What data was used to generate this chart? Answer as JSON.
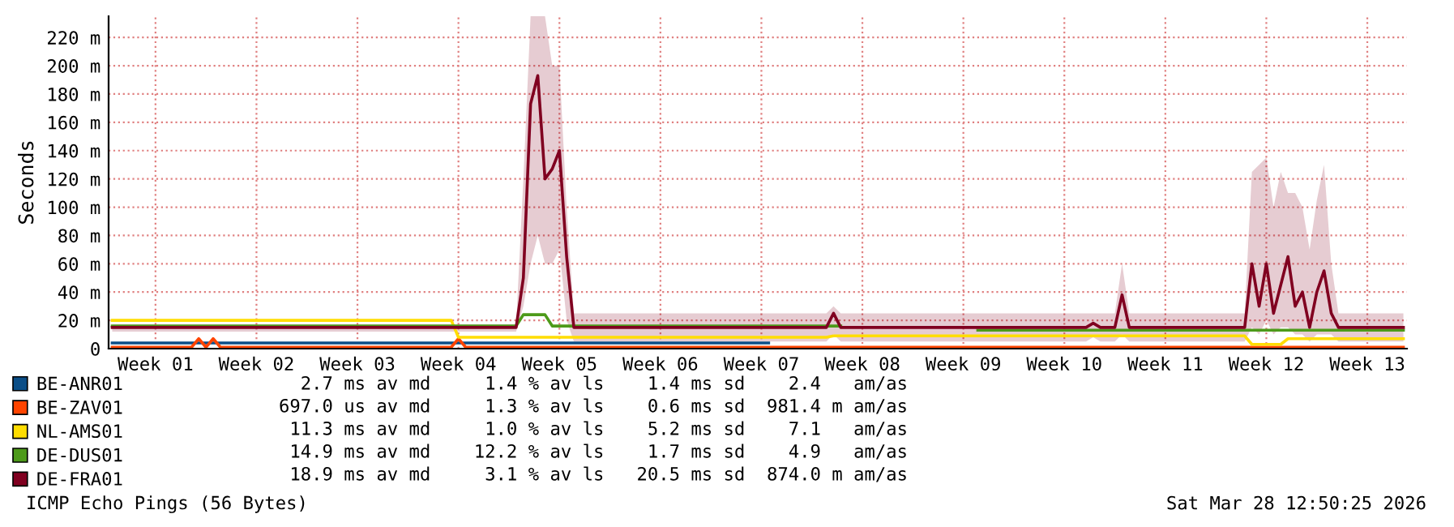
{
  "chart_data": {
    "type": "line",
    "ylabel": "Seconds",
    "categories": [
      null,
      null,
      null,
      null,
      null,
      null,
      "Week 01",
      null,
      null,
      null,
      null,
      null,
      null,
      null,
      null,
      null,
      null,
      null,
      null,
      null,
      "Week 02",
      null,
      null,
      null,
      null,
      null,
      null,
      null,
      null,
      null,
      null,
      null,
      null,
      null,
      "Week 03",
      null,
      null,
      null,
      null,
      null,
      null,
      null,
      null,
      null,
      null,
      null,
      null,
      null,
      "Week 04",
      null,
      null,
      null,
      null,
      null,
      null,
      null,
      null,
      null,
      null,
      null,
      null,
      null,
      "Week 05",
      null,
      null,
      null,
      null,
      null,
      null,
      null,
      null,
      null,
      null,
      null,
      null,
      null,
      "Week 06",
      null,
      null,
      null,
      null,
      null,
      null,
      null,
      null,
      null,
      null,
      null,
      null,
      null,
      "Week 07",
      null,
      null,
      null,
      null,
      null,
      null,
      null,
      null,
      null,
      null,
      null,
      null,
      null,
      "Week 08",
      null,
      null,
      null,
      null,
      null,
      null,
      null,
      null,
      null,
      null,
      null,
      null,
      null,
      "Week 09",
      null,
      null,
      null,
      null,
      null,
      null,
      null,
      null,
      null,
      null,
      null,
      null,
      null,
      "Week 10",
      null,
      null,
      null,
      null,
      null,
      null,
      null,
      null,
      null,
      null,
      null,
      null,
      null,
      "Week 11",
      null,
      null,
      null,
      null,
      null,
      null,
      null,
      null,
      null,
      null,
      null,
      null,
      null,
      "Week 12",
      null,
      null,
      null,
      null,
      null,
      null,
      null,
      null,
      null,
      null,
      null,
      null,
      null,
      "Week 13",
      null,
      null,
      null,
      null,
      null
    ],
    "ylim": [
      0,
      235
    ],
    "yticks": [
      0,
      {
        "value": 20,
        "label": "20 m"
      },
      {
        "value": 40,
        "label": "40 m"
      },
      {
        "value": 60,
        "label": "60 m"
      },
      {
        "value": 80,
        "label": "80 m"
      },
      {
        "value": 100,
        "label": "100 m"
      },
      {
        "value": 120,
        "label": "120 m"
      },
      {
        "value": 140,
        "label": "140 m"
      },
      {
        "value": 160,
        "label": "160 m"
      },
      {
        "value": 180,
        "label": "180 m"
      },
      {
        "value": 200,
        "label": "200 m"
      },
      {
        "value": 220,
        "label": "220 m"
      }
    ],
    "grid": true,
    "legend": "bottom",
    "series": [
      {
        "name": "BE-ANR01",
        "color": "#0b4e87",
        "values": [
          4,
          4,
          4,
          4,
          4,
          4,
          4,
          4,
          4,
          4,
          4,
          4,
          4,
          4,
          4,
          4,
          4,
          4,
          4,
          4,
          4,
          4,
          4,
          4,
          4,
          4,
          4,
          4,
          4,
          4,
          4,
          4,
          4,
          4,
          4,
          4,
          4,
          4,
          4,
          4,
          4,
          4,
          4,
          4,
          4,
          4,
          4,
          4,
          4,
          4,
          4,
          4,
          4,
          4,
          4,
          4,
          4,
          4,
          4,
          4,
          4,
          4,
          4,
          4,
          4,
          4,
          4,
          4,
          4,
          4,
          4,
          4,
          4,
          4,
          4,
          4,
          4,
          4,
          4,
          4,
          4,
          4,
          4,
          4,
          4,
          4,
          4,
          4,
          4,
          4,
          4,
          4,
          null,
          null,
          null,
          null,
          null,
          null,
          null,
          null,
          null,
          null,
          null,
          null,
          null,
          null,
          null,
          null,
          null,
          null,
          null,
          null,
          null,
          null,
          null,
          null,
          null,
          null,
          null,
          null,
          null,
          null,
          null,
          null,
          null,
          null,
          null,
          null,
          null,
          null,
          null,
          null,
          null,
          null,
          null,
          null,
          null,
          null,
          null,
          null,
          null,
          null,
          null,
          null,
          null,
          null,
          null,
          null,
          null,
          null,
          null,
          null,
          null,
          null,
          null,
          null,
          null,
          null,
          null,
          null,
          null,
          null,
          null,
          null,
          null,
          null,
          null,
          null,
          null,
          null,
          null,
          null,
          null,
          null,
          null,
          null,
          null,
          null,
          null,
          null
        ]
      },
      {
        "name": "BE-ZAV01",
        "color": "#ff4400",
        "values": [
          1,
          1,
          1,
          1,
          1,
          1,
          1,
          1,
          1,
          1,
          1,
          1,
          7,
          1,
          7,
          1,
          1,
          1,
          1,
          1,
          1,
          1,
          1,
          1,
          1,
          1,
          1,
          1,
          1,
          1,
          1,
          1,
          1,
          1,
          1,
          1,
          1,
          1,
          1,
          1,
          1,
          1,
          1,
          1,
          1,
          1,
          1,
          1,
          7,
          1,
          1,
          1,
          1,
          1,
          1,
          1,
          1,
          1,
          1,
          1,
          1,
          1,
          1,
          1,
          1,
          1,
          1,
          1,
          1,
          1,
          1,
          1,
          1,
          1,
          1,
          1,
          1,
          1,
          1,
          1,
          1,
          1,
          1,
          1,
          1,
          1,
          1,
          1,
          1,
          1,
          1,
          1,
          1,
          1,
          1,
          1,
          1,
          1,
          1,
          1,
          1,
          1,
          1,
          1,
          1,
          1,
          1,
          1,
          1,
          1,
          1,
          1,
          1,
          1,
          1,
          1,
          1,
          1,
          1,
          1,
          1,
          1,
          1,
          1,
          1,
          1,
          1,
          1,
          1,
          1,
          1,
          1,
          1,
          1,
          1,
          1,
          1,
          1,
          1,
          1,
          1,
          1,
          1,
          1,
          1,
          1,
          1,
          1,
          1,
          1,
          1,
          1,
          1,
          1,
          1,
          1,
          1,
          1,
          1,
          1,
          1,
          1,
          1,
          1,
          1,
          1,
          1,
          1,
          1,
          1,
          1,
          1,
          1,
          1,
          1,
          1,
          1,
          1,
          1,
          1
        ]
      },
      {
        "name": "NL-AMS01",
        "color": "#ffdd00",
        "values": [
          20,
          20,
          20,
          20,
          20,
          20,
          20,
          20,
          20,
          20,
          20,
          20,
          20,
          20,
          20,
          20,
          20,
          20,
          20,
          20,
          20,
          20,
          20,
          20,
          20,
          20,
          20,
          20,
          20,
          20,
          20,
          20,
          20,
          20,
          20,
          20,
          20,
          20,
          20,
          20,
          20,
          20,
          20,
          20,
          20,
          20,
          20,
          20,
          8,
          8,
          8,
          8,
          8,
          8,
          8,
          8,
          8,
          8,
          8,
          8,
          8,
          8,
          8,
          8,
          8,
          8,
          8,
          8,
          8,
          8,
          8,
          8,
          8,
          8,
          8,
          8,
          8,
          8,
          8,
          8,
          8,
          8,
          8,
          8,
          8,
          8,
          8,
          8,
          8,
          8,
          8,
          8,
          8,
          8,
          8,
          8,
          8,
          8,
          8,
          8,
          9,
          9,
          9,
          9,
          9,
          9,
          9,
          9,
          9,
          9,
          9,
          9,
          9,
          9,
          9,
          9,
          9,
          9,
          9,
          9,
          9,
          9,
          9,
          9,
          9,
          9,
          9,
          9,
          9,
          9,
          9,
          9,
          9,
          9,
          9,
          9,
          9,
          9,
          9,
          9,
          9,
          9,
          9,
          9,
          9,
          9,
          9,
          9,
          9,
          9,
          9,
          9,
          9,
          9,
          9,
          9,
          9,
          9,
          3,
          3,
          3,
          3,
          3,
          7,
          7,
          7,
          7,
          7,
          7,
          7,
          7,
          7,
          7,
          7,
          7,
          7,
          7,
          7,
          7,
          7
        ]
      },
      {
        "name": "DE-DUS01",
        "color": "#4d9a1a",
        "values": [
          16,
          16,
          16,
          16,
          16,
          16,
          16,
          16,
          16,
          16,
          16,
          16,
          16,
          16,
          16,
          16,
          16,
          16,
          16,
          16,
          16,
          16,
          16,
          16,
          16,
          16,
          16,
          16,
          16,
          16,
          16,
          16,
          16,
          16,
          16,
          16,
          16,
          16,
          16,
          16,
          16,
          16,
          16,
          16,
          16,
          16,
          16,
          16,
          16,
          16,
          16,
          16,
          16,
          16,
          16,
          16,
          16,
          24,
          24,
          24,
          24,
          16,
          16,
          16,
          16,
          16,
          16,
          16,
          16,
          16,
          16,
          16,
          16,
          16,
          16,
          16,
          16,
          16,
          16,
          16,
          16,
          16,
          16,
          16,
          16,
          16,
          16,
          16,
          16,
          16,
          16,
          16,
          16,
          16,
          16,
          16,
          16,
          16,
          16,
          16,
          16,
          16,
          null,
          null,
          null,
          null,
          null,
          null,
          null,
          null,
          null,
          null,
          null,
          null,
          null,
          null,
          null,
          null,
          null,
          null,
          13,
          13,
          13,
          13,
          13,
          13,
          13,
          13,
          13,
          13,
          13,
          13,
          13,
          13,
          13,
          13,
          13,
          13,
          13,
          13,
          13,
          13,
          13,
          13,
          13,
          13,
          13,
          13,
          13,
          13,
          13,
          13,
          13,
          13,
          13,
          13,
          13,
          13,
          13,
          13,
          13,
          13,
          13,
          13,
          13,
          13,
          13,
          13,
          13,
          13,
          13,
          13,
          13,
          13,
          13,
          13,
          13,
          13,
          13,
          13
        ]
      },
      {
        "name": "DE-FRA01",
        "color": "#800020",
        "values": [
          15,
          15,
          15,
          15,
          15,
          15,
          15,
          15,
          15,
          15,
          15,
          15,
          15,
          15,
          15,
          15,
          15,
          15,
          15,
          15,
          15,
          15,
          15,
          15,
          15,
          15,
          15,
          15,
          15,
          15,
          15,
          15,
          15,
          15,
          15,
          15,
          15,
          15,
          15,
          15,
          15,
          15,
          15,
          15,
          15,
          15,
          15,
          15,
          15,
          15,
          15,
          15,
          15,
          15,
          15,
          15,
          15,
          50,
          173,
          193,
          120,
          127,
          140,
          65,
          15,
          15,
          15,
          15,
          15,
          15,
          15,
          15,
          15,
          15,
          15,
          15,
          15,
          15,
          15,
          15,
          15,
          15,
          15,
          15,
          15,
          15,
          15,
          15,
          15,
          15,
          15,
          15,
          15,
          15,
          15,
          15,
          15,
          15,
          15,
          15,
          25,
          15,
          15,
          15,
          15,
          15,
          15,
          15,
          15,
          15,
          15,
          15,
          15,
          15,
          15,
          15,
          15,
          15,
          15,
          15,
          15,
          15,
          15,
          15,
          15,
          15,
          15,
          15,
          15,
          15,
          15,
          15,
          15,
          15,
          15,
          15,
          18,
          15,
          15,
          15,
          38,
          15,
          15,
          15,
          15,
          15,
          15,
          15,
          15,
          15,
          15,
          15,
          15,
          15,
          15,
          15,
          15,
          15,
          60,
          30,
          60,
          25,
          45,
          65,
          30,
          40,
          15,
          40,
          55,
          25,
          15,
          15,
          15,
          15,
          15,
          15,
          15,
          15,
          15,
          15
        ],
        "lower": [
          12,
          12,
          12,
          12,
          12,
          12,
          12,
          12,
          12,
          12,
          12,
          12,
          12,
          12,
          12,
          12,
          12,
          12,
          12,
          12,
          12,
          12,
          12,
          12,
          12,
          12,
          12,
          12,
          12,
          12,
          12,
          12,
          12,
          12,
          12,
          12,
          12,
          12,
          12,
          12,
          12,
          12,
          12,
          12,
          12,
          12,
          12,
          12,
          12,
          12,
          12,
          12,
          12,
          12,
          12,
          12,
          12,
          30,
          60,
          80,
          60,
          60,
          70,
          20,
          5,
          5,
          5,
          5,
          5,
          5,
          5,
          5,
          5,
          5,
          5,
          5,
          5,
          5,
          5,
          5,
          5,
          5,
          5,
          5,
          5,
          5,
          5,
          5,
          5,
          5,
          5,
          5,
          5,
          5,
          5,
          5,
          5,
          5,
          5,
          5,
          10,
          5,
          5,
          5,
          5,
          5,
          5,
          5,
          5,
          5,
          5,
          5,
          5,
          5,
          5,
          5,
          5,
          5,
          5,
          5,
          5,
          5,
          5,
          5,
          5,
          5,
          5,
          5,
          5,
          5,
          5,
          5,
          5,
          5,
          5,
          5,
          8,
          5,
          5,
          5,
          10,
          5,
          5,
          5,
          5,
          5,
          5,
          5,
          5,
          5,
          5,
          5,
          5,
          5,
          5,
          5,
          5,
          5,
          15,
          10,
          20,
          10,
          15,
          15,
          10,
          10,
          5,
          10,
          10,
          10,
          5,
          5,
          5,
          5,
          5,
          5,
          5,
          5,
          5,
          5
        ],
        "upper": [
          17,
          17,
          17,
          17,
          17,
          17,
          17,
          17,
          17,
          17,
          17,
          17,
          17,
          17,
          17,
          17,
          17,
          17,
          17,
          17,
          17,
          17,
          17,
          17,
          17,
          17,
          17,
          17,
          17,
          17,
          17,
          17,
          17,
          17,
          17,
          17,
          17,
          17,
          17,
          17,
          17,
          17,
          17,
          17,
          17,
          17,
          17,
          17,
          17,
          17,
          17,
          17,
          17,
          17,
          17,
          17,
          17,
          120,
          235,
          235,
          235,
          200,
          200,
          100,
          25,
          25,
          25,
          25,
          25,
          25,
          25,
          25,
          25,
          25,
          25,
          25,
          25,
          25,
          25,
          25,
          25,
          25,
          25,
          25,
          25,
          25,
          25,
          25,
          25,
          25,
          25,
          25,
          25,
          25,
          25,
          25,
          25,
          25,
          25,
          25,
          30,
          25,
          25,
          25,
          25,
          25,
          25,
          25,
          25,
          25,
          25,
          25,
          25,
          25,
          25,
          25,
          25,
          25,
          25,
          25,
          25,
          25,
          25,
          25,
          25,
          25,
          25,
          25,
          25,
          25,
          25,
          25,
          25,
          25,
          25,
          25,
          25,
          25,
          25,
          25,
          60,
          25,
          25,
          25,
          25,
          25,
          25,
          25,
          25,
          25,
          25,
          25,
          25,
          25,
          25,
          25,
          25,
          25,
          125,
          130,
          135,
          100,
          125,
          110,
          110,
          100,
          70,
          105,
          130,
          60,
          25,
          25,
          25,
          25,
          25,
          25,
          25,
          25,
          25,
          25
        ]
      }
    ],
    "annotations": [
      "  2.7 ms av md     1.4 % av ls    1.4 ms sd    2.4   am/as",
      "697.0 us av md     1.3 % av ls    0.6 ms sd  981.4 m am/as",
      " 11.3 ms av md     1.0 % av ls    5.2 ms sd    7.1   am/as",
      " 14.9 ms av md    12.2 % av ls    1.7 ms sd    4.9   am/as",
      " 18.9 ms av md     3.1 % av ls   20.5 ms sd  874.0 m am/as",
      "ICMP Echo Pings (56 Bytes)",
      "Sat Mar 28 12:50:25 2026"
    ]
  }
}
